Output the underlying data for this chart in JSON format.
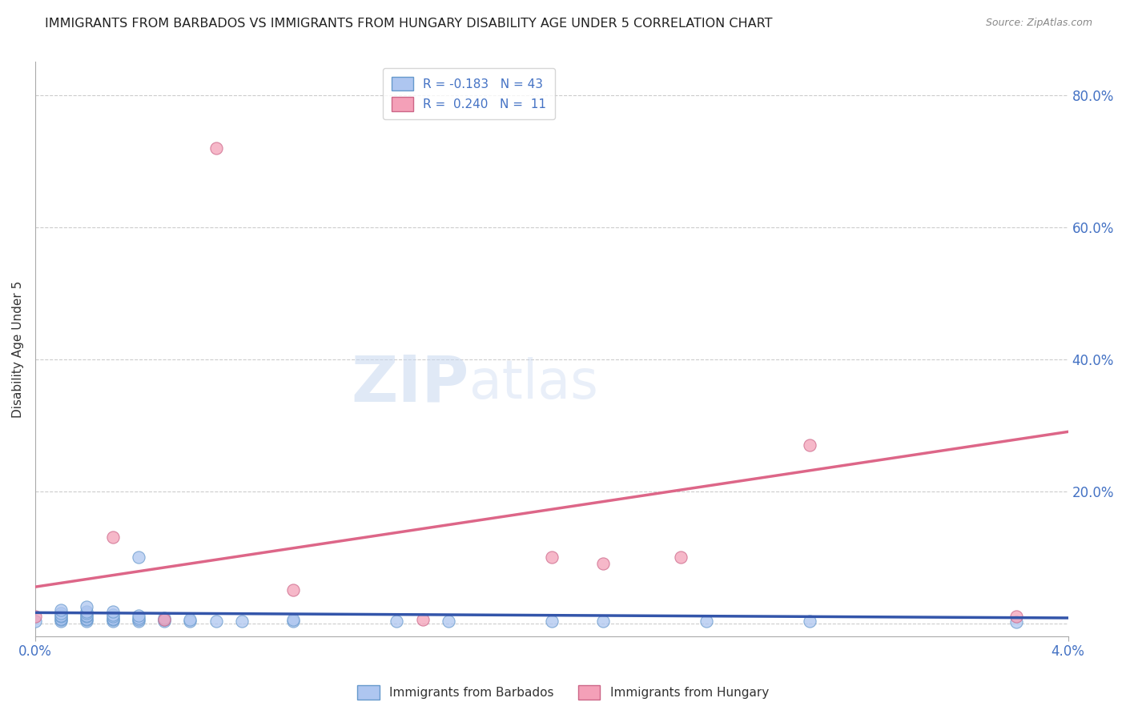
{
  "title": "IMMIGRANTS FROM BARBADOS VS IMMIGRANTS FROM HUNGARY DISABILITY AGE UNDER 5 CORRELATION CHART",
  "source": "Source: ZipAtlas.com",
  "ylabel": "Disability Age Under 5",
  "right_yticks": [
    0.0,
    0.2,
    0.4,
    0.6,
    0.8
  ],
  "right_yticklabels": [
    "",
    "20.0%",
    "40.0%",
    "60.0%",
    "80.0%"
  ],
  "xmin": 0.0,
  "xmax": 0.04,
  "ymin": -0.02,
  "ymax": 0.85,
  "watermark_zip": "ZIP",
  "watermark_atlas": "atlas",
  "barbados_color": "#aec6f0",
  "barbados_edge": "#6699cc",
  "hungary_color": "#f4a0b8",
  "hungary_edge": "#cc6688",
  "barbados_line_color": "#3355aa",
  "hungary_line_color": "#dd6688",
  "barbados_x": [
    0.0,
    0.001,
    0.001,
    0.001,
    0.001,
    0.001,
    0.001,
    0.001,
    0.002,
    0.002,
    0.002,
    0.002,
    0.002,
    0.002,
    0.002,
    0.002,
    0.003,
    0.003,
    0.003,
    0.003,
    0.003,
    0.003,
    0.004,
    0.004,
    0.004,
    0.004,
    0.004,
    0.005,
    0.005,
    0.005,
    0.006,
    0.006,
    0.007,
    0.008,
    0.01,
    0.01,
    0.014,
    0.016,
    0.02,
    0.022,
    0.026,
    0.03,
    0.038
  ],
  "barbados_y": [
    0.003,
    0.003,
    0.005,
    0.007,
    0.01,
    0.012,
    0.015,
    0.02,
    0.003,
    0.005,
    0.007,
    0.01,
    0.012,
    0.015,
    0.018,
    0.025,
    0.003,
    0.005,
    0.007,
    0.01,
    0.013,
    0.018,
    0.003,
    0.005,
    0.008,
    0.012,
    0.1,
    0.003,
    0.005,
    0.008,
    0.003,
    0.005,
    0.003,
    0.003,
    0.003,
    0.005,
    0.003,
    0.003,
    0.003,
    0.003,
    0.003,
    0.003,
    0.002
  ],
  "hungary_x": [
    0.0,
    0.003,
    0.005,
    0.007,
    0.01,
    0.015,
    0.02,
    0.022,
    0.025,
    0.03,
    0.038
  ],
  "hungary_y": [
    0.01,
    0.13,
    0.005,
    0.72,
    0.05,
    0.005,
    0.1,
    0.09,
    0.1,
    0.27,
    0.01
  ],
  "barbados_trend_x": [
    0.0,
    0.04
  ],
  "barbados_trend_y": [
    0.016,
    0.008
  ],
  "hungary_trend_x": [
    0.0,
    0.04
  ],
  "hungary_trend_y": [
    0.055,
    0.29
  ],
  "grid_color": "#cccccc",
  "title_color": "#222222",
  "axis_color": "#4472c4",
  "title_fontsize": 11.5,
  "source_fontsize": 9,
  "marker_size": 120
}
